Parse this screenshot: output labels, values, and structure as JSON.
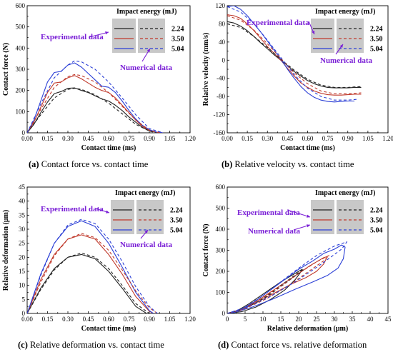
{
  "colors": {
    "black": "#222222",
    "red": "#c0392b",
    "blue": "#2b3fd6",
    "annotation": "#7a1fd6",
    "legend_bg": "#c8c8c8"
  },
  "legend": {
    "title": "Impact energy (mJ)",
    "energies": [
      "2.24",
      "3.50",
      "5.04"
    ]
  },
  "chart_data": [
    {
      "id": "a",
      "type": "line",
      "caption_letter": "(a)",
      "caption_text": "Contact force vs. contact time",
      "xlabel": "Contact time (ms)",
      "ylabel": "Contact force (N)",
      "xlim": [
        0,
        1.2
      ],
      "ylim": [
        0,
        600
      ],
      "xticks": [
        "0.00",
        "0.15",
        "0.30",
        "0.45",
        "0.60",
        "0.75",
        "0.90",
        "1.05",
        "1.20"
      ],
      "yticks": [
        "0",
        "100",
        "200",
        "300",
        "400",
        "500",
        "600"
      ],
      "annotations": [
        "Experimental data",
        "Numerical data"
      ],
      "series": [
        {
          "kind": "experimental",
          "color": "black",
          "x": [
            0,
            0.05,
            0.1,
            0.15,
            0.2,
            0.25,
            0.3,
            0.35,
            0.4,
            0.45,
            0.5,
            0.55,
            0.6,
            0.65,
            0.7,
            0.75,
            0.8,
            0.85,
            0.9,
            0.95,
            1.0
          ],
          "y": [
            0,
            40,
            95,
            145,
            185,
            195,
            210,
            212,
            200,
            190,
            175,
            160,
            150,
            130,
            105,
            75,
            50,
            25,
            10,
            3,
            0
          ]
        },
        {
          "kind": "experimental",
          "color": "red",
          "x": [
            0,
            0.05,
            0.1,
            0.15,
            0.2,
            0.25,
            0.3,
            0.35,
            0.4,
            0.45,
            0.5,
            0.55,
            0.6,
            0.65,
            0.7,
            0.75,
            0.8,
            0.85,
            0.9,
            0.95,
            1.0
          ],
          "y": [
            0,
            50,
            120,
            190,
            235,
            240,
            260,
            270,
            255,
            235,
            215,
            200,
            190,
            165,
            130,
            95,
            60,
            30,
            12,
            3,
            0
          ]
        },
        {
          "kind": "experimental",
          "color": "blue",
          "x": [
            0,
            0.05,
            0.1,
            0.15,
            0.2,
            0.25,
            0.3,
            0.35,
            0.4,
            0.45,
            0.5,
            0.55,
            0.6,
            0.65,
            0.7,
            0.75,
            0.8,
            0.85,
            0.9,
            0.95,
            1.0
          ],
          "y": [
            0,
            60,
            150,
            240,
            285,
            290,
            320,
            330,
            310,
            280,
            250,
            220,
            215,
            190,
            150,
            105,
            65,
            35,
            15,
            4,
            0
          ]
        },
        {
          "kind": "numerical",
          "color": "black",
          "x": [
            0,
            0.1,
            0.2,
            0.3,
            0.35,
            0.4,
            0.5,
            0.6,
            0.7,
            0.8,
            0.9,
            0.95
          ],
          "y": [
            0,
            85,
            165,
            205,
            210,
            205,
            180,
            140,
            90,
            40,
            8,
            0
          ]
        },
        {
          "kind": "numerical",
          "color": "red",
          "x": [
            0,
            0.1,
            0.2,
            0.3,
            0.35,
            0.4,
            0.5,
            0.6,
            0.7,
            0.8,
            0.9,
            0.98
          ],
          "y": [
            0,
            110,
            215,
            265,
            275,
            270,
            240,
            190,
            125,
            60,
            12,
            0
          ]
        },
        {
          "kind": "numerical",
          "color": "blue",
          "x": [
            0,
            0.1,
            0.2,
            0.3,
            0.35,
            0.4,
            0.5,
            0.6,
            0.7,
            0.8,
            0.9,
            1.0
          ],
          "y": [
            0,
            135,
            260,
            320,
            340,
            335,
            300,
            240,
            165,
            85,
            20,
            0
          ]
        }
      ]
    },
    {
      "id": "b",
      "type": "line",
      "caption_letter": "(b)",
      "caption_text": "Relative velocity vs. contact time",
      "xlabel": "Contact time (ms)",
      "ylabel": "Relative velocity (mm/s)",
      "xlim": [
        0,
        1.2
      ],
      "ylim": [
        -160,
        120
      ],
      "xticks": [
        "0.00",
        "0.15",
        "0.30",
        "0.45",
        "0.60",
        "0.75",
        "0.90",
        "1.05",
        "1.20"
      ],
      "yticks": [
        "-160",
        "-120",
        "-80",
        "-40",
        "0",
        "40",
        "80",
        "120"
      ],
      "annotations": [
        "Experimental data",
        "Numerical data"
      ],
      "series": [
        {
          "kind": "experimental",
          "color": "black",
          "x": [
            0,
            0.05,
            0.1,
            0.15,
            0.2,
            0.25,
            0.3,
            0.35,
            0.4,
            0.45,
            0.5,
            0.55,
            0.6,
            0.65,
            0.7,
            0.75,
            0.8,
            0.85,
            0.9,
            0.95,
            1.0
          ],
          "y": [
            85,
            82,
            75,
            65,
            52,
            38,
            25,
            12,
            0,
            -12,
            -25,
            -35,
            -45,
            -52,
            -57,
            -60,
            -61,
            -61,
            -61,
            -60,
            -60
          ]
        },
        {
          "kind": "experimental",
          "color": "red",
          "x": [
            0,
            0.05,
            0.1,
            0.15,
            0.2,
            0.25,
            0.3,
            0.35,
            0.4,
            0.45,
            0.5,
            0.55,
            0.6,
            0.65,
            0.7,
            0.75,
            0.8,
            0.85,
            0.9,
            0.95,
            1.0
          ],
          "y": [
            100,
            98,
            92,
            80,
            65,
            48,
            30,
            15,
            0,
            -18,
            -35,
            -50,
            -60,
            -68,
            -73,
            -76,
            -77,
            -77,
            -76,
            -75,
            -75
          ]
        },
        {
          "kind": "experimental",
          "color": "blue",
          "x": [
            0,
            0.05,
            0.1,
            0.15,
            0.2,
            0.25,
            0.3,
            0.35,
            0.4,
            0.45,
            0.5,
            0.55,
            0.6,
            0.65,
            0.7,
            0.75,
            0.8,
            0.85,
            0.9,
            0.95
          ],
          "y": [
            118,
            120,
            112,
            98,
            80,
            62,
            42,
            22,
            2,
            -20,
            -40,
            -58,
            -72,
            -82,
            -88,
            -91,
            -92,
            -91,
            -90,
            -90
          ]
        },
        {
          "kind": "numerical",
          "color": "black",
          "x": [
            0,
            0.1,
            0.2,
            0.3,
            0.4,
            0.5,
            0.6,
            0.7,
            0.8,
            0.9,
            1.0
          ],
          "y": [
            80,
            72,
            52,
            28,
            2,
            -22,
            -42,
            -55,
            -60,
            -60,
            -58
          ]
        },
        {
          "kind": "numerical",
          "color": "red",
          "x": [
            0,
            0.1,
            0.2,
            0.3,
            0.4,
            0.5,
            0.6,
            0.7,
            0.8,
            0.9,
            1.0
          ],
          "y": [
            98,
            88,
            66,
            36,
            4,
            -28,
            -52,
            -68,
            -74,
            -74,
            -72
          ]
        },
        {
          "kind": "numerical",
          "color": "blue",
          "x": [
            0,
            0.1,
            0.2,
            0.3,
            0.4,
            0.5,
            0.6,
            0.7,
            0.8,
            0.9,
            0.98
          ],
          "y": [
            118,
            106,
            80,
            44,
            6,
            -32,
            -62,
            -80,
            -88,
            -88,
            -86
          ]
        }
      ]
    },
    {
      "id": "c",
      "type": "line",
      "caption_letter": "(c)",
      "caption_text": "Relative deformation vs. contact time",
      "xlabel": "Contact time (ms)",
      "ylabel": "Relative deformation (μm)",
      "xlim": [
        0,
        1.2
      ],
      "ylim": [
        0,
        45
      ],
      "xticks": [
        "0.00",
        "0.15",
        "0.30",
        "0.45",
        "0.60",
        "0.75",
        "0.90",
        "1.05",
        "1.20"
      ],
      "yticks": [
        "0",
        "5",
        "10",
        "15",
        "20",
        "25",
        "30",
        "35",
        "40",
        "45"
      ],
      "annotations": [
        "Experimental data",
        "Numerical data"
      ],
      "series": [
        {
          "kind": "experimental",
          "color": "black",
          "x": [
            0,
            0.1,
            0.2,
            0.3,
            0.4,
            0.5,
            0.6,
            0.7,
            0.8,
            0.88
          ],
          "y": [
            0,
            9,
            16,
            20,
            21,
            19.5,
            15,
            9,
            2.5,
            0
          ]
        },
        {
          "kind": "experimental",
          "color": "red",
          "x": [
            0,
            0.1,
            0.2,
            0.3,
            0.4,
            0.5,
            0.6,
            0.7,
            0.8,
            0.9,
            0.93
          ],
          "y": [
            0,
            12,
            21,
            26.5,
            28,
            26.5,
            21,
            14,
            6,
            0.8,
            0
          ]
        },
        {
          "kind": "experimental",
          "color": "blue",
          "x": [
            0,
            0.1,
            0.2,
            0.3,
            0.4,
            0.5,
            0.6,
            0.7,
            0.8,
            0.9,
            0.93
          ],
          "y": [
            0,
            14,
            25,
            31,
            33,
            31,
            25,
            16.5,
            7.5,
            1,
            0
          ]
        },
        {
          "kind": "numerical",
          "color": "black",
          "x": [
            0,
            0.1,
            0.2,
            0.3,
            0.4,
            0.5,
            0.6,
            0.7,
            0.8,
            0.9
          ],
          "y": [
            0,
            8.5,
            15.5,
            20,
            21.5,
            20,
            16,
            10,
            3.5,
            0
          ]
        },
        {
          "kind": "numerical",
          "color": "red",
          "x": [
            0,
            0.1,
            0.2,
            0.3,
            0.4,
            0.5,
            0.6,
            0.7,
            0.8,
            0.9,
            0.96
          ],
          "y": [
            0,
            11,
            20.5,
            26.5,
            28.5,
            27,
            22.5,
            15.5,
            8,
            2,
            0
          ]
        },
        {
          "kind": "numerical",
          "color": "blue",
          "x": [
            0,
            0.1,
            0.2,
            0.3,
            0.4,
            0.5,
            0.6,
            0.7,
            0.8,
            0.9,
            0.96
          ],
          "y": [
            0,
            13.5,
            25,
            31.5,
            33.5,
            32,
            26.5,
            18.5,
            9.5,
            2.5,
            0
          ]
        }
      ]
    },
    {
      "id": "d",
      "type": "line",
      "caption_letter": "(d)",
      "caption_text": "Contact force vs. relative deformation",
      "xlabel": "Relative deformation (μm)",
      "ylabel": "Contact force (N)",
      "xlim": [
        0,
        45
      ],
      "ylim": [
        0,
        600
      ],
      "xticks": [
        "0",
        "5",
        "10",
        "15",
        "20",
        "25",
        "30",
        "35",
        "40",
        "45"
      ],
      "yticks": [
        "0",
        "100",
        "200",
        "300",
        "400",
        "500",
        "600"
      ],
      "annotations": [
        "Experimental data",
        "Numerical data"
      ],
      "series": [
        {
          "kind": "experimental",
          "color": "black",
          "x": [
            0,
            3,
            6,
            9,
            12,
            15,
            18,
            20,
            21,
            20.5,
            19,
            16,
            12,
            8,
            4,
            0
          ],
          "y": [
            0,
            15,
            45,
            80,
            115,
            150,
            180,
            200,
            210,
            195,
            160,
            110,
            65,
            30,
            8,
            0
          ]
        },
        {
          "kind": "experimental",
          "color": "red",
          "x": [
            0,
            4,
            8,
            12,
            16,
            20,
            23,
            25,
            27,
            28,
            27,
            25,
            22,
            18,
            13,
            8,
            3,
            0
          ],
          "y": [
            0,
            18,
            55,
            100,
            145,
            190,
            225,
            245,
            265,
            270,
            235,
            200,
            170,
            140,
            95,
            50,
            12,
            0
          ]
        },
        {
          "kind": "experimental",
          "color": "blue",
          "x": [
            0,
            4,
            8,
            12,
            16,
            20,
            24,
            27,
            30,
            32,
            33,
            32.5,
            31,
            28,
            24,
            19,
            13,
            7,
            2,
            0
          ],
          "y": [
            0,
            20,
            60,
            110,
            160,
            210,
            250,
            285,
            305,
            325,
            315,
            260,
            215,
            180,
            150,
            115,
            70,
            30,
            5,
            0
          ]
        },
        {
          "kind": "numerical",
          "color": "black",
          "x": [
            0,
            4,
            8,
            12,
            16,
            20,
            21.5,
            20,
            16,
            12,
            8,
            4,
            0
          ],
          "y": [
            0,
            20,
            55,
            95,
            145,
            195,
            210,
            190,
            140,
            90,
            50,
            18,
            0
          ]
        },
        {
          "kind": "numerical",
          "color": "red",
          "x": [
            0,
            5,
            10,
            15,
            20,
            25,
            28.5,
            27,
            22,
            17,
            11,
            5,
            0
          ],
          "y": [
            0,
            25,
            75,
            130,
            190,
            245,
            275,
            250,
            190,
            130,
            70,
            22,
            0
          ]
        },
        {
          "kind": "numerical",
          "color": "blue",
          "x": [
            0,
            5,
            10,
            15,
            20,
            25,
            30,
            33.5,
            32,
            26,
            19,
            12,
            5,
            0
          ],
          "y": [
            0,
            28,
            85,
            150,
            215,
            275,
            320,
            340,
            305,
            230,
            150,
            80,
            25,
            0
          ]
        }
      ]
    }
  ]
}
